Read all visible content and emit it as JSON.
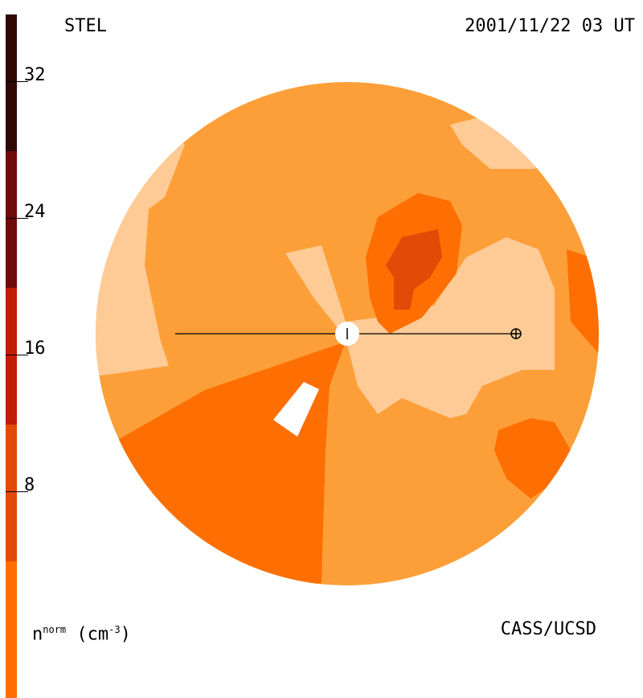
{
  "header": {
    "instrument": "STEL",
    "timestamp": "2001/11/22 03 UT"
  },
  "footer": {
    "units_main": "n",
    "units_super": "norm",
    "units_paren": "(cm",
    "units_exp": "-3",
    "units_close": ")",
    "credit": "CASS/UCSD"
  },
  "colorbar": {
    "ticks": [
      "32",
      "24",
      "16",
      "8"
    ],
    "colors": [
      "#fecb96",
      "#fc9f39",
      "#fd6f03",
      "#e24a08",
      "#c21b06",
      "#9b0707",
      "#6e0a0a",
      "#300705"
    ]
  },
  "colors": {
    "background": "#ffffff",
    "level1": "#fecb96",
    "level2": "#fc9f39",
    "level3": "#fd6f03",
    "level4": "#e24a08"
  }
}
